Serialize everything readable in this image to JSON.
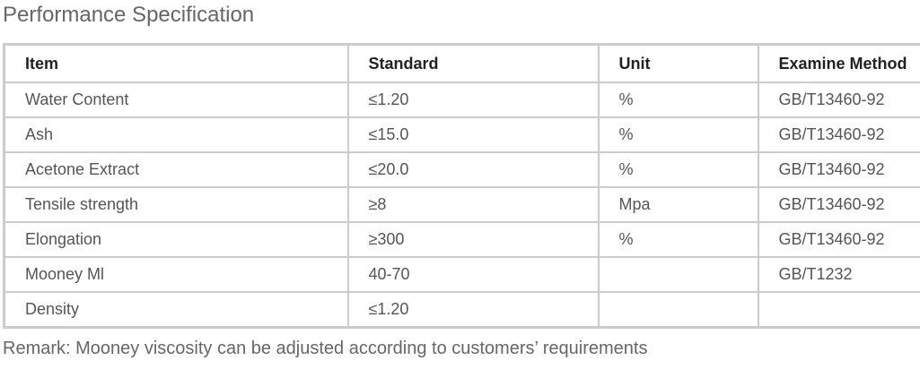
{
  "title": "Performance Specification",
  "table": {
    "headers": [
      "Item",
      "Standard",
      "Unit",
      "Examine Method"
    ],
    "rows": [
      [
        "Water Content",
        "≤1.20",
        "%",
        "GB/T13460-92"
      ],
      [
        "Ash",
        "≤15.0",
        "%",
        "GB/T13460-92"
      ],
      [
        "Acetone Extract",
        "≤20.0",
        "%",
        "GB/T13460-92"
      ],
      [
        "Tensile strength",
        "≥8",
        "Mpa",
        "GB/T13460-92"
      ],
      [
        "Elongation",
        "≥300",
        "%",
        "GB/T13460-92"
      ],
      [
        "Mooney Ml",
        "40-70",
        "",
        "GB/T1232"
      ],
      [
        "Density",
        "≤1.20",
        "",
        ""
      ]
    ]
  },
  "remark": "Remark: Mooney viscosity can be adjusted according to customers’ requirements"
}
